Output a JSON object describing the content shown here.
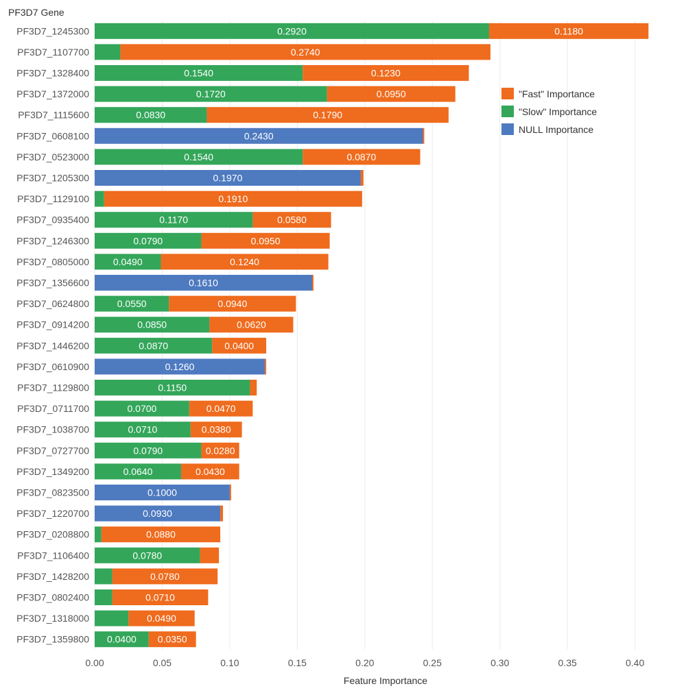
{
  "chart_data": {
    "type": "bar",
    "orientation": "horizontal",
    "stacked": true,
    "ylabel": "PF3D7 Gene",
    "xlabel": "Feature Importance",
    "xlim": [
      0,
      0.42
    ],
    "xticks": [
      "0.00",
      "0.05",
      "0.10",
      "0.15",
      "0.20",
      "0.25",
      "0.30",
      "0.35",
      "0.40"
    ],
    "xtick_values": [
      0,
      0.05,
      0.1,
      0.15,
      0.2,
      0.25,
      0.3,
      0.35,
      0.4
    ],
    "grid": true,
    "legend_position": "top-right",
    "categories": [
      "PF3D7_1245300",
      "PF3D7_1107700",
      "PF3D7_1328400",
      "PF3D7_1372000",
      "PF3D7_1115600",
      "PF3D7_0608100",
      "PF3D7_0523000",
      "PF3D7_1205300",
      "PF3D7_1129100",
      "PF3D7_0935400",
      "PF3D7_1246300",
      "PF3D7_0805000",
      "PF3D7_1356600",
      "PF3D7_0624800",
      "PF3D7_0914200",
      "PF3D7_1446200",
      "PF3D7_0610900",
      "PF3D7_1129800",
      "PF3D7_0711700",
      "PF3D7_1038700",
      "PF3D7_0727700",
      "PF3D7_1349200",
      "PF3D7_0823500",
      "PF3D7_1220700",
      "PF3D7_0208800",
      "PF3D7_1106400",
      "PF3D7_1428200",
      "PF3D7_0802400",
      "PF3D7_1318000",
      "PF3D7_1359800"
    ],
    "series": [
      {
        "name": "NULL Importance",
        "color": "#4e7ac0",
        "values": [
          0,
          0,
          0,
          0,
          0,
          0.243,
          0,
          0.197,
          0,
          0,
          0,
          0,
          0.161,
          0,
          0,
          0,
          0.126,
          0,
          0,
          0,
          0,
          0,
          0.1,
          0.093,
          0,
          0,
          0,
          0,
          0,
          0
        ],
        "labels": [
          "",
          "",
          "",
          "",
          "",
          "0.2430",
          "",
          "0.1970",
          "",
          "",
          "",
          "",
          "0.1610",
          "",
          "",
          "",
          "0.1260",
          "",
          "",
          "",
          "",
          "",
          "0.1000",
          "0.0930",
          "",
          "",
          "",
          "",
          "",
          ""
        ]
      },
      {
        "name": "\"Slow\" Importance",
        "color": "#34a65a",
        "values": [
          0.292,
          0.019,
          0.154,
          0.172,
          0.083,
          0,
          0.154,
          0,
          0.007,
          0.117,
          0.079,
          0.049,
          0,
          0.055,
          0.085,
          0.087,
          0,
          0.115,
          0.07,
          0.071,
          0.079,
          0.064,
          0,
          0,
          0.005,
          0.078,
          0.013,
          0.013,
          0.025,
          0.04
        ],
        "labels": [
          "0.2920",
          "",
          "0.1540",
          "0.1720",
          "0.0830",
          "",
          "0.1540",
          "",
          "",
          "0.1170",
          "0.0790",
          "0.0490",
          "",
          "0.0550",
          "0.0850",
          "0.0870",
          "",
          "0.1150",
          "0.0700",
          "0.0710",
          "0.0790",
          "0.0640",
          "",
          "",
          "",
          "0.0780",
          "",
          "",
          "",
          "0.0400"
        ]
      },
      {
        "name": "\"Fast\" Importance",
        "color": "#ef6b1d",
        "values": [
          0.118,
          0.274,
          0.123,
          0.095,
          0.179,
          0.001,
          0.087,
          0.002,
          0.191,
          0.058,
          0.095,
          0.124,
          0.001,
          0.094,
          0.062,
          0.04,
          0.001,
          0.005,
          0.047,
          0.038,
          0.028,
          0.043,
          0.001,
          0.002,
          0.088,
          0.014,
          0.078,
          0.071,
          0.049,
          0.035
        ],
        "labels": [
          "0.1180",
          "0.2740",
          "0.1230",
          "0.0950",
          "0.1790",
          "",
          "0.0870",
          "",
          "0.1910",
          "0.0580",
          "0.0950",
          "0.1240",
          "",
          "0.0940",
          "0.0620",
          "0.0400",
          "",
          "",
          "0.0470",
          "0.0380",
          "0.0280",
          "0.0430",
          "",
          "",
          "0.0880",
          "",
          "0.0780",
          "0.0710",
          "0.0490",
          "0.0350"
        ]
      }
    ],
    "legend": [
      {
        "name": "\"Fast\" Importance",
        "color": "#ef6b1d"
      },
      {
        "name": "\"Slow\" Importance",
        "color": "#34a65a"
      },
      {
        "name": "NULL Importance",
        "color": "#4e7ac0"
      }
    ]
  }
}
